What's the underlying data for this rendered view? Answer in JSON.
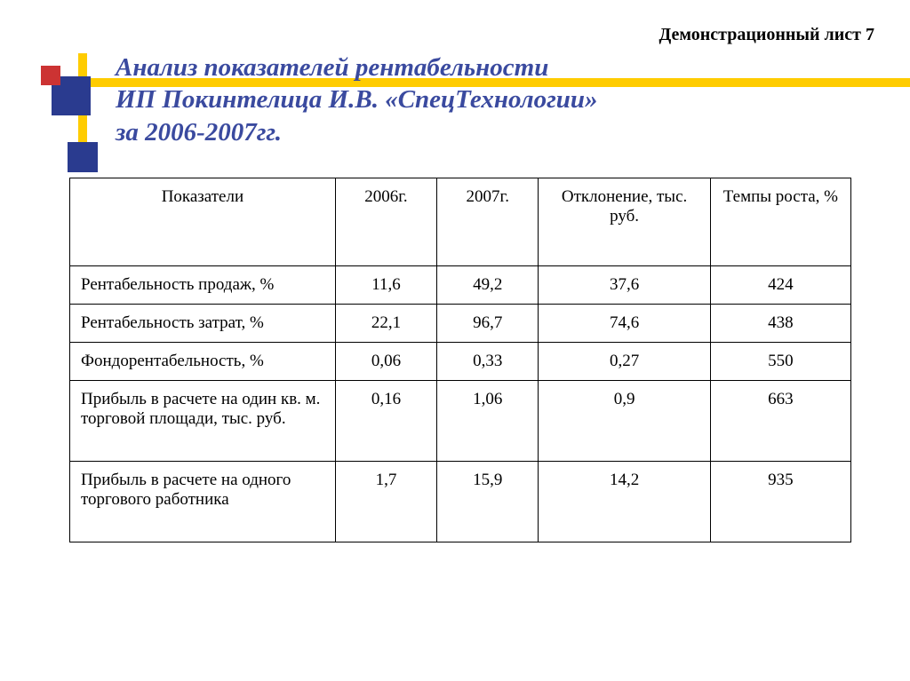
{
  "header_label": "Демонстрационный лист 7",
  "title_line1": "Анализ  показателей рентабельности",
  "title_line2": "ИП Покинтелица И.В. «СпецТехнологии»",
  "title_line3": "за 2006-2007гг.",
  "colors": {
    "title_text": "#3a4a9f",
    "accent_yellow": "#ffcc00",
    "accent_orange": "#ff9900",
    "accent_blue": "#2a3b8f",
    "accent_red": "#cc3333",
    "background": "#ffffff",
    "table_border": "#000000",
    "body_text": "#000000"
  },
  "typography": {
    "title_fontsize": 29,
    "title_style": "italic bold",
    "header_label_fontsize": 20,
    "header_label_weight": "bold",
    "cell_fontsize": 19,
    "font_family": "Times New Roman"
  },
  "table": {
    "type": "table",
    "columns": [
      {
        "key": "indicator",
        "label": "Показатели",
        "width_pct": 34,
        "align": "left"
      },
      {
        "key": "y2006",
        "label": "2006г.",
        "width_pct": 13,
        "align": "center"
      },
      {
        "key": "y2007",
        "label": "2007г.",
        "width_pct": 13,
        "align": "center"
      },
      {
        "key": "delta",
        "label": "Отклонение, тыс. руб.",
        "width_pct": 22,
        "align": "center"
      },
      {
        "key": "growth",
        "label": "Темпы роста, %",
        "width_pct": 18,
        "align": "center"
      }
    ],
    "rows": [
      {
        "indicator": "Рентабельность продаж, %",
        "y2006": "11,6",
        "y2007": "49,2",
        "delta": "37,6",
        "growth": "424",
        "tall": false
      },
      {
        "indicator": "Рентабельность затрат, %",
        "y2006": "22,1",
        "y2007": "96,7",
        "delta": "74,6",
        "growth": "438",
        "tall": false
      },
      {
        "indicator": "Фондорентабельность, %",
        "y2006": "0,06",
        "y2007": "0,33",
        "delta": "0,27",
        "growth": "550",
        "tall": false
      },
      {
        "indicator": "Прибыль в расчете на один кв. м. торговой площади, тыс. руб.",
        "y2006": "0,16",
        "y2007": "1,06",
        "delta": "0,9",
        "growth": "663",
        "tall": true
      },
      {
        "indicator": "Прибыль в расчете на одного торгового работника",
        "y2006": "1,7",
        "y2007": "15,9",
        "delta": "14,2",
        "growth": "935",
        "tall": true
      }
    ]
  }
}
